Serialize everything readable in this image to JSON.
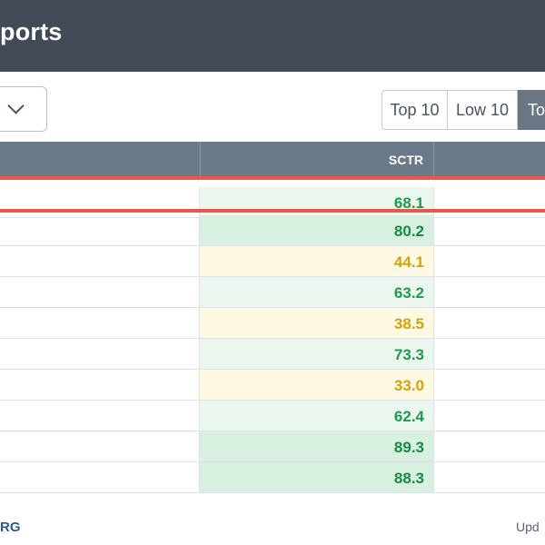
{
  "header": {
    "title": "ports"
  },
  "controls": {
    "select_icon": "chevron-down-icon",
    "buttons": [
      {
        "label": "Top 10"
      },
      {
        "label": "Low 10"
      },
      {
        "label": "To"
      }
    ]
  },
  "table": {
    "column_header": "SCTR",
    "rows": [
      {
        "sctr": "68.1"
      },
      {
        "sctr": "80.2"
      },
      {
        "sctr": "44.1"
      },
      {
        "sctr": "63.2"
      },
      {
        "sctr": "38.5"
      },
      {
        "sctr": "73.3"
      },
      {
        "sctr": "33.0"
      },
      {
        "sctr": "62.4"
      },
      {
        "sctr": "89.3"
      },
      {
        "sctr": "88.3"
      }
    ]
  },
  "footer": {
    "brand": "RG",
    "update_text": "Upd"
  },
  "colors": {
    "header_bg": "#414a56",
    "table_header_bg": "#6b7a89",
    "highlight": "#e8574b",
    "green_text": "#1f9a4d",
    "yellow_text": "#d4a20c"
  }
}
